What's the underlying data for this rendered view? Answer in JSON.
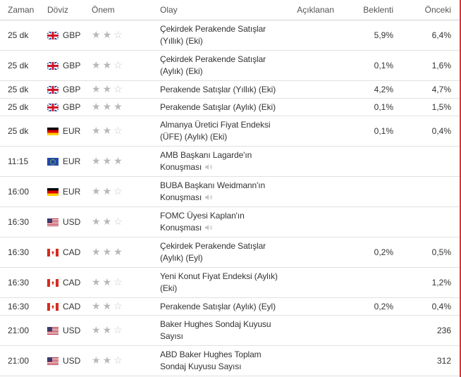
{
  "headers": {
    "time": "Zaman",
    "currency": "Döviz",
    "importance": "Önem",
    "event": "Olay",
    "actual": "Açıklanan",
    "forecast": "Beklenti",
    "previous": "Önceki"
  },
  "rows": [
    {
      "time": "25 dk",
      "flag": "gb",
      "currency": "GBP",
      "stars": 2,
      "event_l1": "Çekirdek Perakende Satışlar",
      "event_l2": "(Yıllık) (Eki)",
      "speech": false,
      "actual": "",
      "forecast": "5,9%",
      "previous": "6,4%"
    },
    {
      "time": "25 dk",
      "flag": "gb",
      "currency": "GBP",
      "stars": 2,
      "event_l1": "Çekirdek Perakende Satışlar",
      "event_l2": "(Aylık) (Eki)",
      "speech": false,
      "actual": "",
      "forecast": "0,1%",
      "previous": "1,6%"
    },
    {
      "time": "25 dk",
      "flag": "gb",
      "currency": "GBP",
      "stars": 2,
      "event_l1": "Perakende Satışlar (Yıllık) (Eki)",
      "event_l2": "",
      "speech": false,
      "actual": "",
      "forecast": "4,2%",
      "previous": "4,7%"
    },
    {
      "time": "25 dk",
      "flag": "gb",
      "currency": "GBP",
      "stars": 3,
      "event_l1": "Perakende Satışlar (Aylık) (Eki)",
      "event_l2": "",
      "speech": false,
      "actual": "",
      "forecast": "0,1%",
      "previous": "1,5%"
    },
    {
      "time": "25 dk",
      "flag": "de",
      "currency": "EUR",
      "stars": 2,
      "event_l1": "Almanya Üretici Fiyat Endeksi",
      "event_l2": "(ÜFE) (Aylık) (Eki)",
      "speech": false,
      "actual": "",
      "forecast": "0,1%",
      "previous": "0,4%"
    },
    {
      "time": "11:15",
      "flag": "eu",
      "currency": "EUR",
      "stars": 3,
      "event_l1": "AMB Başkanı Lagarde'ın",
      "event_l2": "Konuşması",
      "speech": true,
      "actual": "",
      "forecast": "",
      "previous": ""
    },
    {
      "time": "16:00",
      "flag": "de",
      "currency": "EUR",
      "stars": 2,
      "event_l1": "BUBA Başkanı Weidmann'ın",
      "event_l2": "Konuşması",
      "speech": true,
      "actual": "",
      "forecast": "",
      "previous": ""
    },
    {
      "time": "16:30",
      "flag": "us",
      "currency": "USD",
      "stars": 2,
      "event_l1": "FOMC Üyesi Kaplan'ın",
      "event_l2": "Konuşması",
      "speech": true,
      "actual": "",
      "forecast": "",
      "previous": ""
    },
    {
      "time": "16:30",
      "flag": "ca",
      "currency": "CAD",
      "stars": 3,
      "event_l1": "Çekirdek Perakende Satışlar",
      "event_l2": "(Aylık) (Eyl)",
      "speech": false,
      "actual": "",
      "forecast": "0,2%",
      "previous": "0,5%"
    },
    {
      "time": "16:30",
      "flag": "ca",
      "currency": "CAD",
      "stars": 2,
      "event_l1": "Yeni Konut Fiyat Endeksi (Aylık)",
      "event_l2": "(Eki)",
      "speech": false,
      "actual": "",
      "forecast": "",
      "previous": "1,2%"
    },
    {
      "time": "16:30",
      "flag": "ca",
      "currency": "CAD",
      "stars": 2,
      "event_l1": "Perakende Satışlar (Aylık) (Eyl)",
      "event_l2": "",
      "speech": false,
      "actual": "",
      "forecast": "0,2%",
      "previous": "0,4%"
    },
    {
      "time": "21:00",
      "flag": "us",
      "currency": "USD",
      "stars": 2,
      "event_l1": "Baker Hughes Sondaj Kuyusu",
      "event_l2": "Sayısı",
      "speech": false,
      "actual": "",
      "forecast": "",
      "previous": "236"
    },
    {
      "time": "21:00",
      "flag": "us",
      "currency": "USD",
      "stars": 2,
      "event_l1": "ABD Baker Hughes Toplam",
      "event_l2": "Sondaj Kuyusu Sayısı",
      "speech": false,
      "actual": "",
      "forecast": "",
      "previous": "312"
    }
  ]
}
